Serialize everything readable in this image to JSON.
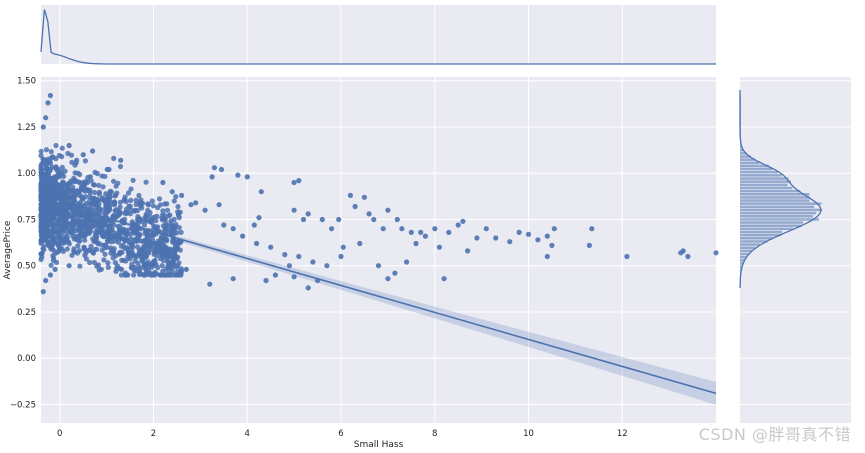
{
  "chart_data": {
    "type": "scatter",
    "title": "",
    "xlabel": "Small Hass",
    "ylabel": "AveragePrice",
    "xlim": [
      -0.4,
      14.0
    ],
    "ylim": [
      -0.35,
      1.52
    ],
    "x_ticks": [
      0,
      2,
      4,
      6,
      8,
      10,
      12
    ],
    "x_tick_labels": [
      "0",
      "2",
      "4",
      "6",
      "8",
      "10",
      "12"
    ],
    "y_ticks": [
      -0.25,
      0.0,
      0.25,
      0.5,
      0.75,
      1.0,
      1.25,
      1.5
    ],
    "y_tick_labels": [
      "−0.25",
      "0.00",
      "0.25",
      "0.50",
      "0.75",
      "1.00",
      "1.25",
      "1.50"
    ],
    "grid": true,
    "background_color": "#EAEAF2",
    "point_color": "#4C72B0",
    "regression_line": {
      "x": [
        -0.4,
        14.0
      ],
      "y": [
        0.86,
        -0.19
      ]
    },
    "points": [
      [
        3.3,
        1.03
      ],
      [
        3.45,
        1.02
      ],
      [
        3.25,
        0.98
      ],
      [
        3.8,
        0.99
      ],
      [
        4.0,
        0.98
      ],
      [
        5.0,
        0.95
      ],
      [
        5.1,
        0.96
      ],
      [
        4.3,
        0.9
      ],
      [
        3.4,
        0.83
      ],
      [
        2.8,
        0.83
      ],
      [
        4.15,
        0.72
      ],
      [
        4.25,
        0.76
      ],
      [
        5.0,
        0.8
      ],
      [
        5.3,
        0.78
      ],
      [
        5.2,
        0.75
      ],
      [
        5.6,
        0.75
      ],
      [
        5.8,
        0.7
      ],
      [
        5.95,
        0.75
      ],
      [
        6.2,
        0.88
      ],
      [
        6.3,
        0.82
      ],
      [
        6.5,
        0.87
      ],
      [
        6.6,
        0.78
      ],
      [
        6.7,
        0.75
      ],
      [
        6.9,
        0.7
      ],
      [
        7.0,
        0.8
      ],
      [
        7.2,
        0.75
      ],
      [
        7.3,
        0.7
      ],
      [
        7.5,
        0.68
      ],
      [
        7.6,
        0.62
      ],
      [
        7.8,
        0.66
      ],
      [
        8.0,
        0.7
      ],
      [
        8.1,
        0.6
      ],
      [
        8.3,
        0.68
      ],
      [
        8.5,
        0.72
      ],
      [
        8.6,
        0.74
      ],
      [
        8.7,
        0.58
      ],
      [
        8.9,
        0.65
      ],
      [
        9.1,
        0.7
      ],
      [
        9.3,
        0.65
      ],
      [
        9.6,
        0.63
      ],
      [
        9.8,
        0.68
      ],
      [
        10.0,
        0.67
      ],
      [
        10.2,
        0.64
      ],
      [
        10.4,
        0.66
      ],
      [
        10.5,
        0.61
      ],
      [
        10.55,
        0.7
      ],
      [
        10.4,
        0.55
      ],
      [
        11.3,
        0.61
      ],
      [
        11.35,
        0.7
      ],
      [
        12.1,
        0.55
      ],
      [
        13.3,
        0.58
      ],
      [
        13.25,
        0.57
      ],
      [
        13.4,
        0.55
      ],
      [
        14.0,
        0.57
      ],
      [
        7.0,
        0.43
      ],
      [
        7.15,
        0.46
      ],
      [
        8.2,
        0.43
      ],
      [
        7.7,
        0.68
      ],
      [
        6.05,
        0.6
      ],
      [
        6.4,
        0.62
      ],
      [
        5.5,
        0.42
      ],
      [
        5.0,
        0.44
      ],
      [
        5.3,
        0.38
      ],
      [
        4.9,
        0.5
      ],
      [
        6.8,
        0.5
      ],
      [
        7.4,
        0.52
      ],
      [
        6.0,
        0.55
      ],
      [
        5.7,
        0.5
      ],
      [
        4.6,
        0.45
      ],
      [
        4.4,
        0.42
      ],
      [
        3.7,
        0.43
      ],
      [
        3.2,
        0.4
      ],
      [
        2.7,
        0.48
      ],
      [
        2.4,
        0.52
      ],
      [
        1.3,
        1.07
      ],
      [
        1.15,
        1.08
      ],
      [
        1.05,
        1.02
      ],
      [
        0.7,
        1.12
      ],
      [
        0.5,
        1.1
      ],
      [
        0.2,
        1.15
      ],
      [
        -0.2,
        1.42
      ],
      [
        -0.25,
        1.38
      ],
      [
        -0.3,
        1.3
      ],
      [
        -0.35,
        1.25
      ],
      [
        -0.3,
        0.42
      ],
      [
        -0.35,
        0.36
      ],
      [
        -0.2,
        0.45
      ],
      [
        -0.1,
        0.48
      ],
      [
        0.2,
        0.5
      ],
      [
        1.2,
        0.47
      ],
      [
        1.4,
        0.46
      ],
      [
        1.6,
        0.49
      ],
      [
        1.8,
        0.5
      ],
      [
        2.0,
        0.52
      ],
      [
        2.2,
        0.95
      ],
      [
        2.4,
        0.9
      ],
      [
        2.6,
        0.88
      ],
      [
        2.9,
        0.84
      ],
      [
        3.1,
        0.8
      ],
      [
        3.5,
        0.72
      ],
      [
        3.7,
        0.7
      ],
      [
        3.9,
        0.66
      ],
      [
        4.2,
        0.62
      ],
      [
        4.5,
        0.6
      ],
      [
        4.8,
        0.56
      ],
      [
        5.1,
        0.55
      ],
      [
        5.4,
        0.52
      ]
    ],
    "cloud": {
      "x_range": [
        -0.4,
        2.6
      ],
      "y_range": [
        0.45,
        1.1
      ],
      "points": 1500
    },
    "marginal_x": {
      "type": "kde"
    },
    "marginal_y": {
      "type": "hist+kde",
      "bins": 60
    }
  },
  "watermark": "CSDN @胖哥真不错"
}
